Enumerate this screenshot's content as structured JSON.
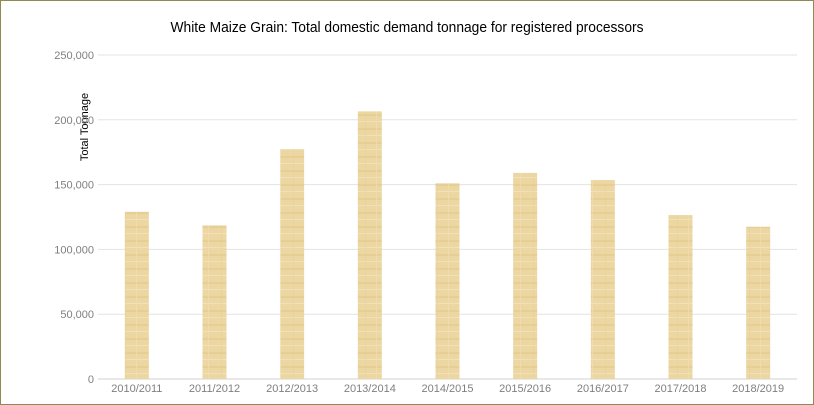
{
  "chart_data": {
    "type": "bar",
    "title": "White Maize Grain: Total domestic demand tonnage for registered processors",
    "xlabel": "",
    "ylabel": "Total Tonnage",
    "categories": [
      "2010/2011",
      "2011/2012",
      "2012/2013",
      "2013/2014",
      "2014/2015",
      "2015/2016",
      "2016/2017",
      "2017/2018",
      "2018/2019"
    ],
    "values": [
      129000,
      118500,
      177500,
      206500,
      151000,
      159000,
      153500,
      126500,
      117500
    ],
    "ylim": [
      0,
      250000
    ],
    "yticks": [
      0,
      50000,
      100000,
      150000,
      200000,
      250000
    ],
    "ytick_labels": [
      "0",
      "50,000",
      "100,000",
      "150,000",
      "200,000",
      "250,000"
    ],
    "grid": true,
    "legend": "none",
    "bar_color": "#ecd7a3"
  }
}
